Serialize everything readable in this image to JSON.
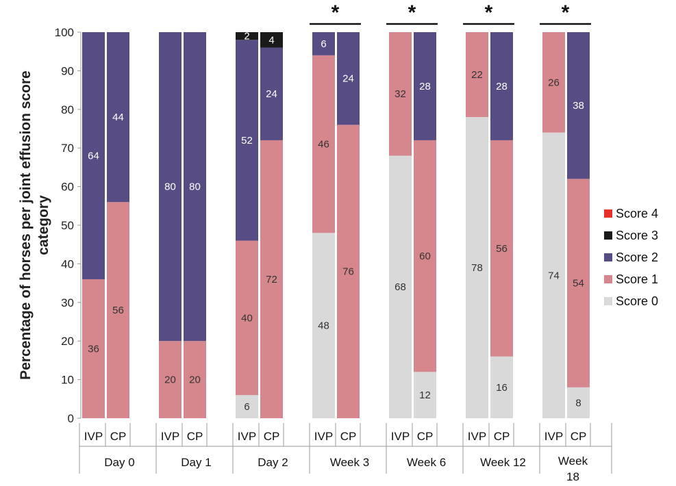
{
  "chart_data": {
    "type": "bar",
    "stacked": true,
    "ylabel": "Percentage of horses per joint effusion score category",
    "ylim": [
      0,
      100
    ],
    "yticks": [
      "0",
      "10",
      "20",
      "30",
      "40",
      "50",
      "60",
      "70",
      "80",
      "90",
      "100"
    ],
    "groups": [
      {
        "label": "Day 0",
        "significant": false
      },
      {
        "label": "Day 1",
        "significant": false
      },
      {
        "label": "Day 2",
        "significant": false
      },
      {
        "label": "Week 3",
        "significant": true
      },
      {
        "label": "Week 6",
        "significant": true
      },
      {
        "label": "Week 12",
        "significant": true
      },
      {
        "label": "Week 18",
        "significant": true
      }
    ],
    "significance_mark": "*",
    "bar_categories": [
      "IVP",
      "CP"
    ],
    "series": [
      {
        "name": "Score 0",
        "color": "#d9d9d9",
        "label_color": "#333333",
        "values": [
          0,
          0,
          0,
          0,
          6,
          0,
          48,
          0,
          68,
          12,
          78,
          16,
          74,
          8
        ]
      },
      {
        "name": "Score 1",
        "color": "#d5878d",
        "label_color": "#333333",
        "values": [
          36,
          56,
          20,
          20,
          40,
          72,
          46,
          76,
          32,
          60,
          22,
          56,
          26,
          54
        ]
      },
      {
        "name": "Score 2",
        "color": "#574d84",
        "label_color": "#ffffff",
        "values": [
          64,
          44,
          80,
          80,
          52,
          24,
          6,
          24,
          0,
          28,
          0,
          28,
          0,
          38
        ]
      },
      {
        "name": "Score 3",
        "color": "#1a1a1a",
        "label_color": "#ffffff",
        "values": [
          0,
          0,
          0,
          0,
          2,
          4,
          0,
          0,
          0,
          0,
          0,
          0,
          0,
          0
        ]
      },
      {
        "name": "Score 4",
        "color": "#e8312a",
        "label_color": "#ffffff",
        "values": [
          0,
          0,
          0,
          0,
          0,
          0,
          0,
          0,
          0,
          0,
          0,
          0,
          0,
          0
        ]
      }
    ],
    "legend": {
      "placement": "right",
      "order": [
        "Score 4",
        "Score 3",
        "Score 2",
        "Score 1",
        "Score 0"
      ]
    },
    "grid": false
  }
}
